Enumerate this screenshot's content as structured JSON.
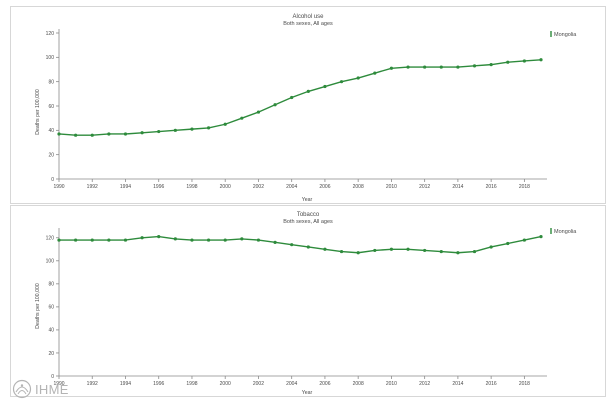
{
  "colors": {
    "series": "#2e8b3c",
    "marker": "#2e8b3c",
    "logo": "#b4b4b4",
    "panel_border": "#d7d7d7"
  },
  "logo": {
    "text": "IHME",
    "icon": "ihme-logo-icon"
  },
  "chart_data": [
    {
      "type": "line",
      "title": "Alcohol use",
      "subtitle": "Both sexes, All ages",
      "xlabel": "Year",
      "ylabel": "Deaths per 100,000",
      "x": [
        1990,
        1991,
        1992,
        1993,
        1994,
        1995,
        1996,
        1997,
        1998,
        1999,
        2000,
        2001,
        2002,
        2003,
        2004,
        2005,
        2006,
        2007,
        2008,
        2009,
        2010,
        2011,
        2012,
        2013,
        2014,
        2015,
        2016,
        2017,
        2018,
        2019
      ],
      "xticks": [
        "1990",
        "1992",
        "1994",
        "1996",
        "1998",
        "2000",
        "2002",
        "2004",
        "2006",
        "2008",
        "2010",
        "2012",
        "2014",
        "2016",
        "2018"
      ],
      "yticks": [
        "0",
        "20",
        "40",
        "60",
        "80",
        "100",
        "120"
      ],
      "ylim": [
        0,
        120
      ],
      "xlim": [
        1990,
        2019
      ],
      "series": [
        {
          "name": "Mongolia",
          "values": [
            37,
            36,
            36,
            37,
            37,
            38,
            39,
            40,
            41,
            42,
            45,
            50,
            55,
            61,
            67,
            72,
            76,
            80,
            83,
            87,
            91,
            92,
            92,
            92,
            92,
            93,
            94,
            96,
            97,
            98
          ]
        }
      ],
      "legend_position": "top-right",
      "grid": false
    },
    {
      "type": "line",
      "title": "Tobacco",
      "subtitle": "Both sexes, All ages",
      "xlabel": "Year",
      "ylabel": "Deaths per 100,000",
      "x": [
        1990,
        1991,
        1992,
        1993,
        1994,
        1995,
        1996,
        1997,
        1998,
        1999,
        2000,
        2001,
        2002,
        2003,
        2004,
        2005,
        2006,
        2007,
        2008,
        2009,
        2010,
        2011,
        2012,
        2013,
        2014,
        2015,
        2016,
        2017,
        2018,
        2019
      ],
      "xticks": [
        "1990",
        "1992",
        "1994",
        "1996",
        "1998",
        "2000",
        "2002",
        "2004",
        "2006",
        "2008",
        "2010",
        "2012",
        "2014",
        "2016",
        "2018"
      ],
      "yticks": [
        "0",
        "20",
        "40",
        "60",
        "80",
        "100",
        "120"
      ],
      "ylim": [
        0,
        125
      ],
      "xlim": [
        1990,
        2019
      ],
      "series": [
        {
          "name": "Mongolia",
          "values": [
            118,
            118,
            118,
            118,
            118,
            120,
            121,
            119,
            118,
            118,
            118,
            119,
            118,
            116,
            114,
            112,
            110,
            108,
            107,
            109,
            110,
            110,
            109,
            108,
            107,
            108,
            112,
            115,
            118,
            121
          ]
        }
      ],
      "legend_position": "top-right",
      "grid": false
    }
  ]
}
